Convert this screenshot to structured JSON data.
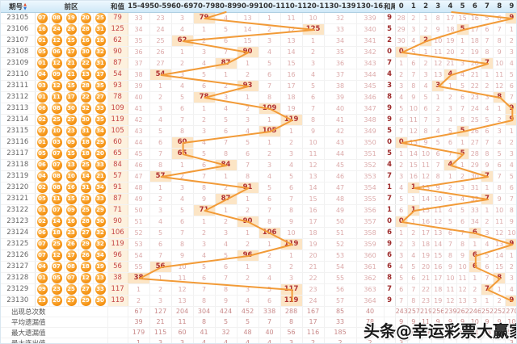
{
  "header": {
    "issue_label": "期号",
    "front_label": "前区",
    "sum_label": "和值",
    "range_labels": [
      "15-49",
      "50-59",
      "60-69",
      "70-79",
      "80-89",
      "90-99",
      "100-109",
      "110-119",
      "120-129",
      "130-139",
      "130-165"
    ],
    "tail_label": "和尾",
    "digit_labels": [
      "0",
      "1",
      "2",
      "3",
      "4",
      "5",
      "6",
      "7",
      "8",
      "9"
    ]
  },
  "rows": [
    {
      "issue": "23105",
      "balls": [
        "07",
        "08",
        "19",
        "20",
        "25"
      ],
      "sum": "79",
      "range_cells": [
        "33",
        "23",
        "3",
        "79",
        "4",
        "13",
        "1",
        "11",
        "10",
        "32",
        "339"
      ],
      "range_hit": 3,
      "tail": "9",
      "digit_cells": [
        "28",
        "2",
        "1",
        "8",
        "17",
        "15",
        "16",
        "5",
        "6",
        "9"
      ],
      "digit_hit": 9
    },
    {
      "issue": "23106",
      "balls": [
        "16",
        "24",
        "26",
        "28",
        "31"
      ],
      "sum": "125",
      "range_cells": [
        "34",
        "24",
        "4",
        "1",
        "5",
        "14",
        "2",
        "12",
        "125",
        "33",
        "340"
      ],
      "range_hit": 8,
      "tail": "5",
      "digit_cells": [
        "29",
        "3",
        "2",
        "9",
        "18",
        "5",
        "17",
        "6",
        "7",
        "1"
      ],
      "digit_hit": 5
    },
    {
      "issue": "23107",
      "balls": [
        "01",
        "12",
        "15",
        "16",
        "18"
      ],
      "sum": "62",
      "range_cells": [
        "35",
        "25",
        "62",
        "2",
        "6",
        "15",
        "3",
        "13",
        "1",
        "34",
        "341"
      ],
      "range_hit": 2,
      "tail": "2",
      "digit_cells": [
        "30",
        "4",
        "2",
        "10",
        "19",
        "1",
        "18",
        "7",
        "8",
        "2"
      ],
      "digit_hit": 2
    },
    {
      "issue": "23108",
      "balls": [
        "05",
        "06",
        "17",
        "30",
        "32"
      ],
      "sum": "90",
      "range_cells": [
        "36",
        "26",
        "1",
        "3",
        "7",
        "90",
        "4",
        "14",
        "2",
        "35",
        "342"
      ],
      "range_hit": 5,
      "tail": "0",
      "digit_cells": [
        "0",
        "5",
        "1",
        "11",
        "20",
        "2",
        "19",
        "8",
        "9",
        "3"
      ],
      "digit_hit": 0
    },
    {
      "issue": "23109",
      "balls": [
        "01",
        "12",
        "21",
        "22",
        "31"
      ],
      "sum": "87",
      "range_cells": [
        "37",
        "27",
        "2",
        "4",
        "87",
        "1",
        "5",
        "15",
        "3",
        "36",
        "343"
      ],
      "range_hit": 4,
      "tail": "7",
      "digit_cells": [
        "1",
        "6",
        "2",
        "12",
        "21",
        "3",
        "20",
        "7",
        "10",
        "4"
      ],
      "digit_hit": 7
    },
    {
      "issue": "23110",
      "balls": [
        "04",
        "09",
        "11",
        "13",
        "17"
      ],
      "sum": "54",
      "range_cells": [
        "38",
        "54",
        "3",
        "5",
        "1",
        "2",
        "6",
        "16",
        "4",
        "37",
        "344"
      ],
      "range_hit": 1,
      "tail": "4",
      "digit_cells": [
        "2",
        "7",
        "3",
        "13",
        "4",
        "4",
        "21",
        "1",
        "11",
        "5"
      ],
      "digit_hit": 4
    },
    {
      "issue": "23111",
      "balls": [
        "03",
        "12",
        "15",
        "28",
        "35"
      ],
      "sum": "93",
      "range_cells": [
        "39",
        "1",
        "4",
        "6",
        "2",
        "93",
        "7",
        "17",
        "5",
        "38",
        "345"
      ],
      "range_hit": 5,
      "tail": "3",
      "digit_cells": [
        "3",
        "8",
        "4",
        "3",
        "1",
        "5",
        "22",
        "2",
        "12",
        "6"
      ],
      "digit_hit": 3
    },
    {
      "issue": "23112",
      "balls": [
        "01",
        "11",
        "17",
        "22",
        "27"
      ],
      "sum": "78",
      "range_cells": [
        "40",
        "2",
        "5",
        "78",
        "3",
        "1",
        "8",
        "18",
        "6",
        "39",
        "346"
      ],
      "range_hit": 3,
      "tail": "8",
      "digit_cells": [
        "4",
        "9",
        "5",
        "1",
        "2",
        "6",
        "23",
        "3",
        "8",
        "7"
      ],
      "digit_hit": 8
    },
    {
      "issue": "23113",
      "balls": [
        "06",
        "08",
        "30",
        "32",
        "33"
      ],
      "sum": "109",
      "range_cells": [
        "41",
        "3",
        "6",
        "1",
        "4",
        "2",
        "109",
        "19",
        "7",
        "40",
        "347"
      ],
      "range_hit": 6,
      "tail": "9",
      "digit_cells": [
        "5",
        "10",
        "6",
        "2",
        "3",
        "7",
        "24",
        "4",
        "1",
        "9"
      ],
      "digit_hit": 9
    },
    {
      "issue": "23114",
      "balls": [
        "02",
        "25",
        "27",
        "30",
        "35"
      ],
      "sum": "119",
      "range_cells": [
        "42",
        "4",
        "7",
        "2",
        "5",
        "3",
        "1",
        "119",
        "8",
        "41",
        "348"
      ],
      "range_hit": 7,
      "tail": "9",
      "digit_cells": [
        "6",
        "11",
        "7",
        "3",
        "4",
        "8",
        "25",
        "5",
        "2",
        "9"
      ],
      "digit_hit": 9
    },
    {
      "issue": "23115",
      "balls": [
        "07",
        "10",
        "23",
        "31",
        "34"
      ],
      "sum": "105",
      "range_cells": [
        "43",
        "5",
        "8",
        "3",
        "6",
        "4",
        "105",
        "1",
        "9",
        "42",
        "349"
      ],
      "range_hit": 6,
      "tail": "5",
      "digit_cells": [
        "7",
        "12",
        "8",
        "4",
        "5",
        "5",
        "26",
        "6",
        "3",
        "1"
      ],
      "digit_hit": 5
    },
    {
      "issue": "23116",
      "balls": [
        "01",
        "03",
        "09",
        "18",
        "29"
      ],
      "sum": "60",
      "range_cells": [
        "44",
        "6",
        "60",
        "4",
        "7",
        "5",
        "1",
        "2",
        "10",
        "43",
        "350"
      ],
      "range_hit": 2,
      "tail": "0",
      "digit_cells": [
        "0",
        "13",
        "9",
        "5",
        "6",
        "1",
        "27",
        "7",
        "4",
        "2"
      ],
      "digit_hit": 0
    },
    {
      "issue": "23117",
      "balls": [
        "05",
        "07",
        "15",
        "18",
        "20"
      ],
      "sum": "65",
      "range_cells": [
        "45",
        "7",
        "65",
        "5",
        "8",
        "6",
        "2",
        "3",
        "11",
        "44",
        "351"
      ],
      "range_hit": 2,
      "tail": "5",
      "digit_cells": [
        "1",
        "14",
        "10",
        "6",
        "7",
        "5",
        "28",
        "8",
        "5",
        "3"
      ],
      "digit_hit": 5
    },
    {
      "issue": "23118",
      "balls": [
        "06",
        "07",
        "13",
        "25",
        "33"
      ],
      "sum": "84",
      "range_cells": [
        "46",
        "8",
        "1",
        "6",
        "84",
        "7",
        "3",
        "4",
        "12",
        "45",
        "352"
      ],
      "range_hit": 4,
      "tail": "4",
      "digit_cells": [
        "2",
        "15",
        "11",
        "7",
        "4",
        "1",
        "29",
        "9",
        "6",
        "4"
      ],
      "digit_hit": 4
    },
    {
      "issue": "23119",
      "balls": [
        "04",
        "08",
        "10",
        "14",
        "21"
      ],
      "sum": "57",
      "range_cells": [
        "47",
        "57",
        "2",
        "7",
        "1",
        "8",
        "4",
        "5",
        "13",
        "46",
        "353"
      ],
      "range_hit": 1,
      "tail": "7",
      "digit_cells": [
        "3",
        "16",
        "12",
        "8",
        "1",
        "2",
        "30",
        "7",
        "7",
        "5"
      ],
      "digit_hit": 7
    },
    {
      "issue": "23120",
      "balls": [
        "02",
        "08",
        "16",
        "31",
        "34"
      ],
      "sum": "91",
      "range_cells": [
        "48",
        "1",
        "3",
        "8",
        "2",
        "91",
        "5",
        "6",
        "14",
        "47",
        "354"
      ],
      "range_hit": 5,
      "tail": "1",
      "digit_cells": [
        "4",
        "1",
        "13",
        "9",
        "2",
        "3",
        "31",
        "1",
        "8",
        "6"
      ],
      "digit_hit": 1
    },
    {
      "issue": "23121",
      "balls": [
        "05",
        "11",
        "15",
        "23",
        "33"
      ],
      "sum": "87",
      "range_cells": [
        "49",
        "2",
        "4",
        "9",
        "87",
        "1",
        "6",
        "7",
        "15",
        "48",
        "355"
      ],
      "range_hit": 4,
      "tail": "7",
      "digit_cells": [
        "5",
        "1",
        "14",
        "10",
        "3",
        "4",
        "32",
        "7",
        "9",
        "7"
      ],
      "digit_hit": 7
    },
    {
      "issue": "23122",
      "balls": [
        "01",
        "07",
        "09",
        "25",
        "29"
      ],
      "sum": "71",
      "range_cells": [
        "50",
        "3",
        "5",
        "71",
        "1",
        "2",
        "7",
        "8",
        "16",
        "49",
        "356"
      ],
      "range_hit": 3,
      "tail": "1",
      "digit_cells": [
        "6",
        "1",
        "15",
        "11",
        "4",
        "5",
        "33",
        "1",
        "10",
        "8"
      ],
      "digit_hit": 1
    },
    {
      "issue": "23123",
      "balls": [
        "02",
        "14",
        "16",
        "28",
        "30"
      ],
      "sum": "90",
      "range_cells": [
        "51",
        "4",
        "6",
        "1",
        "2",
        "90",
        "8",
        "9",
        "17",
        "50",
        "357"
      ],
      "range_hit": 5,
      "tail": "0",
      "digit_cells": [
        "0",
        "1",
        "16",
        "12",
        "5",
        "6",
        "34",
        "2",
        "11",
        "9"
      ],
      "digit_hit": 0
    },
    {
      "issue": "23124",
      "balls": [
        "06",
        "18",
        "23",
        "27",
        "32"
      ],
      "sum": "106",
      "range_cells": [
        "52",
        "5",
        "7",
        "2",
        "3",
        "1",
        "106",
        "10",
        "18",
        "51",
        "358"
      ],
      "range_hit": 6,
      "tail": "6",
      "digit_cells": [
        "1",
        "2",
        "17",
        "13",
        "6",
        "7",
        "6",
        "3",
        "12",
        "10"
      ],
      "digit_hit": 6
    },
    {
      "issue": "23125",
      "balls": [
        "07",
        "25",
        "26",
        "29",
        "32"
      ],
      "sum": "119",
      "range_cells": [
        "53",
        "6",
        "8",
        "3",
        "4",
        "2",
        "1",
        "119",
        "19",
        "52",
        "359"
      ],
      "range_hit": 7,
      "tail": "9",
      "digit_cells": [
        "2",
        "3",
        "18",
        "14",
        "7",
        "8",
        "1",
        "4",
        "13",
        "9"
      ],
      "digit_hit": 9
    },
    {
      "issue": "23126",
      "balls": [
        "07",
        "12",
        "17",
        "26",
        "34"
      ],
      "sum": "96",
      "range_cells": [
        "54",
        "7",
        "9",
        "4",
        "5",
        "96",
        "2",
        "1",
        "20",
        "53",
        "360"
      ],
      "range_hit": 5,
      "tail": "6",
      "digit_cells": [
        "3",
        "4",
        "19",
        "15",
        "8",
        "9",
        "6",
        "5",
        "14",
        "1"
      ],
      "digit_hit": 6
    },
    {
      "issue": "23127",
      "balls": [
        "04",
        "07",
        "08",
        "18",
        "19"
      ],
      "sum": "56",
      "range_cells": [
        "55",
        "56",
        "10",
        "5",
        "6",
        "1",
        "3",
        "2",
        "21",
        "54",
        "361"
      ],
      "range_hit": 1,
      "tail": "6",
      "digit_cells": [
        "4",
        "5",
        "20",
        "16",
        "9",
        "10",
        "6",
        "6",
        "15",
        "2"
      ],
      "digit_hit": 6
    },
    {
      "issue": "23128",
      "balls": [
        "01",
        "05",
        "07",
        "12",
        "13"
      ],
      "sum": "38",
      "range_cells": [
        "38",
        "1",
        "11",
        "6",
        "7",
        "2",
        "4",
        "3",
        "22",
        "55",
        "362"
      ],
      "range_hit": 0,
      "tail": "8",
      "digit_cells": [
        "5",
        "6",
        "21",
        "17",
        "10",
        "11",
        "1",
        "7",
        "8",
        "3"
      ],
      "digit_hit": 8
    },
    {
      "issue": "23129",
      "balls": [
        "09",
        "23",
        "25",
        "27",
        "33"
      ],
      "sum": "117",
      "range_cells": [
        "1",
        "2",
        "12",
        "7",
        "8",
        "3",
        "5",
        "117",
        "23",
        "56",
        "363"
      ],
      "range_hit": 7,
      "tail": "7",
      "digit_cells": [
        "6",
        "7",
        "22",
        "18",
        "11",
        "12",
        "2",
        "7",
        "1",
        "4"
      ],
      "digit_hit": 7
    },
    {
      "issue": "23130",
      "balls": [
        "13",
        "20",
        "27",
        "29",
        "30"
      ],
      "sum": "119",
      "range_cells": [
        "2",
        "3",
        "13",
        "8",
        "9",
        "4",
        "6",
        "119",
        "24",
        "57",
        "364"
      ],
      "range_hit": 7,
      "tail": "9",
      "digit_cells": [
        "7",
        "8",
        "23",
        "19",
        "12",
        "13",
        "3",
        "1",
        "2",
        "9"
      ],
      "digit_hit": 9
    }
  ],
  "summary": [
    {
      "label": "出现总次数",
      "range_values": [
        "67",
        "127",
        "204",
        "304",
        "424",
        "452",
        "338",
        "288",
        "167",
        "85",
        "40"
      ],
      "digit_values": [
        "243",
        "257",
        "219",
        "256",
        "239",
        "262",
        "246",
        "252",
        "252",
        "270"
      ]
    },
    {
      "label": "平均遗漏值",
      "range_values": [
        "39",
        "21",
        "11",
        "8",
        "5",
        "5",
        "7",
        "8",
        "17",
        "33",
        "78"
      ],
      "digit_values": [
        "9",
        "9",
        "11",
        "9",
        "9",
        "9",
        "10",
        "9",
        "9",
        "10"
      ]
    },
    {
      "label": "最大遗漏值",
      "range_values": [
        "179",
        "115",
        "60",
        "41",
        "32",
        "48",
        "40",
        "56",
        "116",
        "185",
        "364"
      ],
      "digit_values": [
        "55",
        "52",
        "69",
        "50",
        "57",
        "53",
        "61",
        "54",
        "43",
        "59"
      ]
    },
    {
      "label": "最大连出值",
      "range_values": [
        "1",
        "3",
        "3",
        "4",
        "4",
        "4",
        "4",
        "3",
        "2",
        "2",
        "2"
      ],
      "digit_values": [
        "3",
        "",
        "",
        "",
        "",
        "",
        "",
        "",
        "",
        "3"
      ]
    }
  ],
  "watermark": "头条@幸运彩票大赢家",
  "colors": {
    "trend_line": "#f29b38",
    "hit_bg": "#fce5c5",
    "hit_text": "#b03030",
    "miss_text": "#dcaaaa",
    "sum_col_bg": "#fdf1de",
    "sum_text": "#c54545",
    "ball_orange": "#f79a1e",
    "header_blue": "#2a6fd2",
    "header_bg": "#cfe8f7"
  }
}
